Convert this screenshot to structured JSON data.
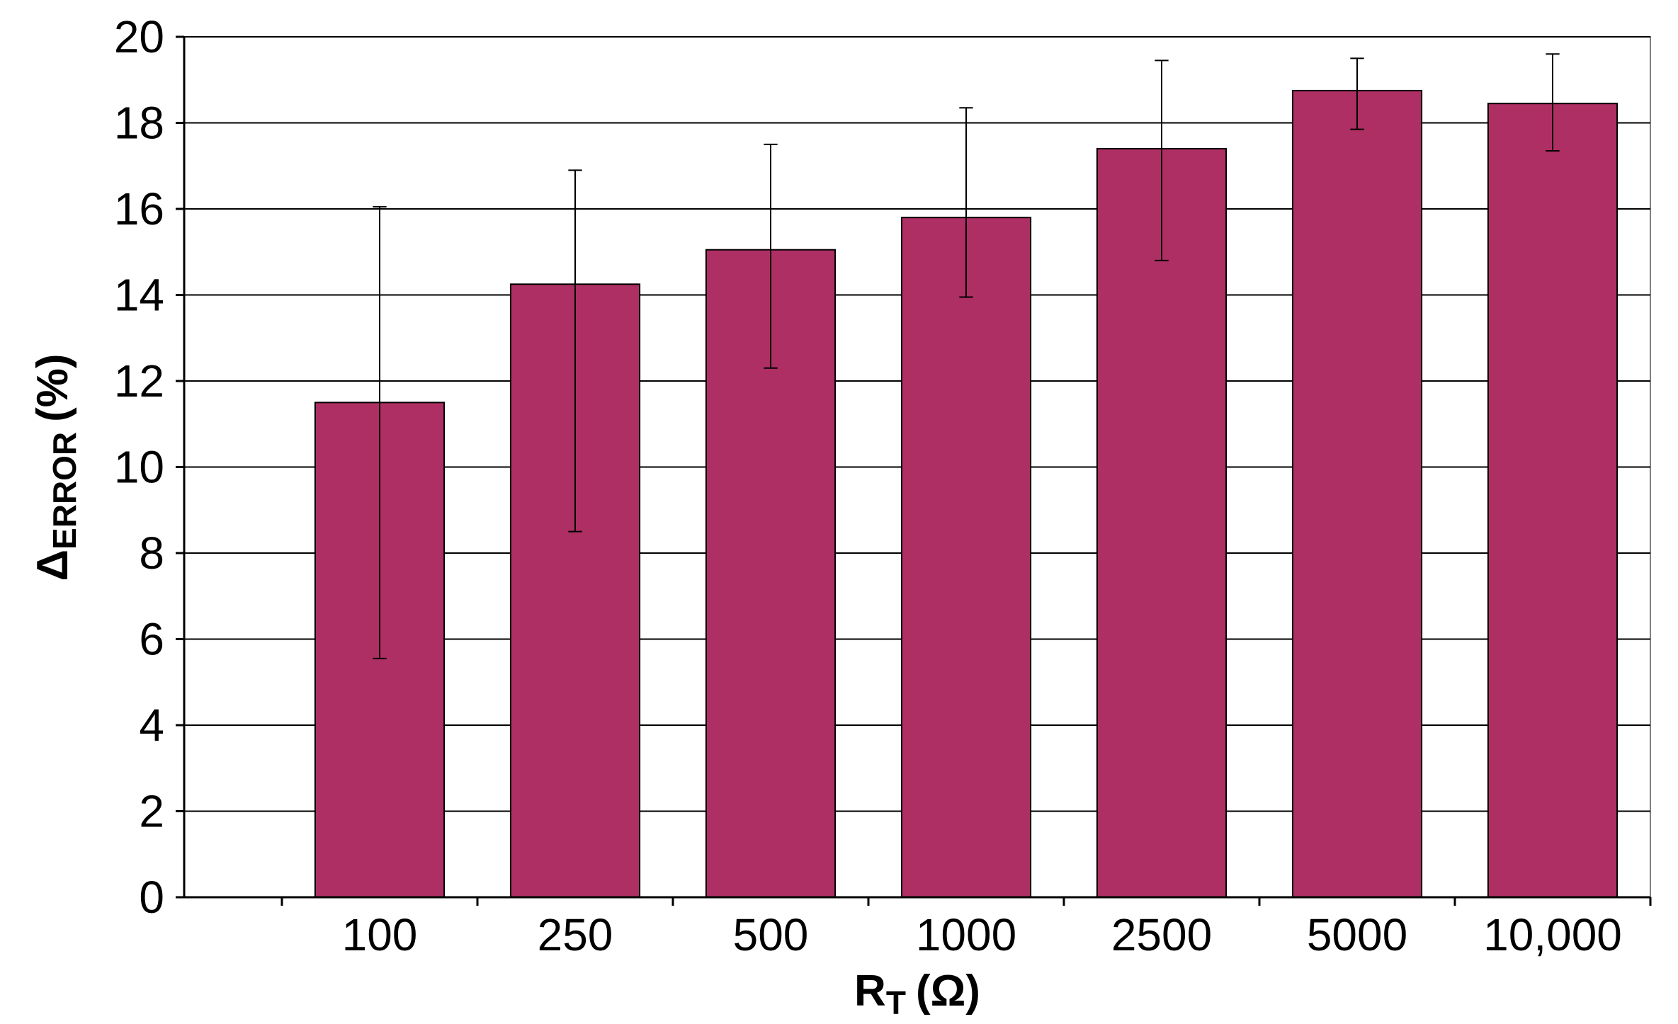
{
  "chart_data": {
    "type": "bar",
    "title": "",
    "xlabel": {
      "main": "R",
      "sub": "T",
      "unit": "(Ω)"
    },
    "ylabel": {
      "main": "Δ",
      "sub": "ERROR",
      "unit": "(%)"
    },
    "ylim": [
      0,
      20
    ],
    "yticks": [
      0,
      2,
      4,
      6,
      8,
      10,
      12,
      14,
      16,
      18,
      20
    ],
    "grid": true,
    "legend": "none",
    "bar_color": "#AE2F63",
    "categories": [
      "100",
      "250",
      "500",
      "1000",
      "2500",
      "5000",
      "10,000"
    ],
    "values": [
      11.5,
      14.25,
      15.05,
      15.8,
      17.4,
      18.75,
      18.45
    ],
    "error_low": [
      5.55,
      8.5,
      12.3,
      13.95,
      14.8,
      17.85,
      17.35
    ],
    "error_high": [
      16.05,
      16.9,
      17.5,
      18.35,
      19.45,
      19.5,
      19.6
    ]
  }
}
